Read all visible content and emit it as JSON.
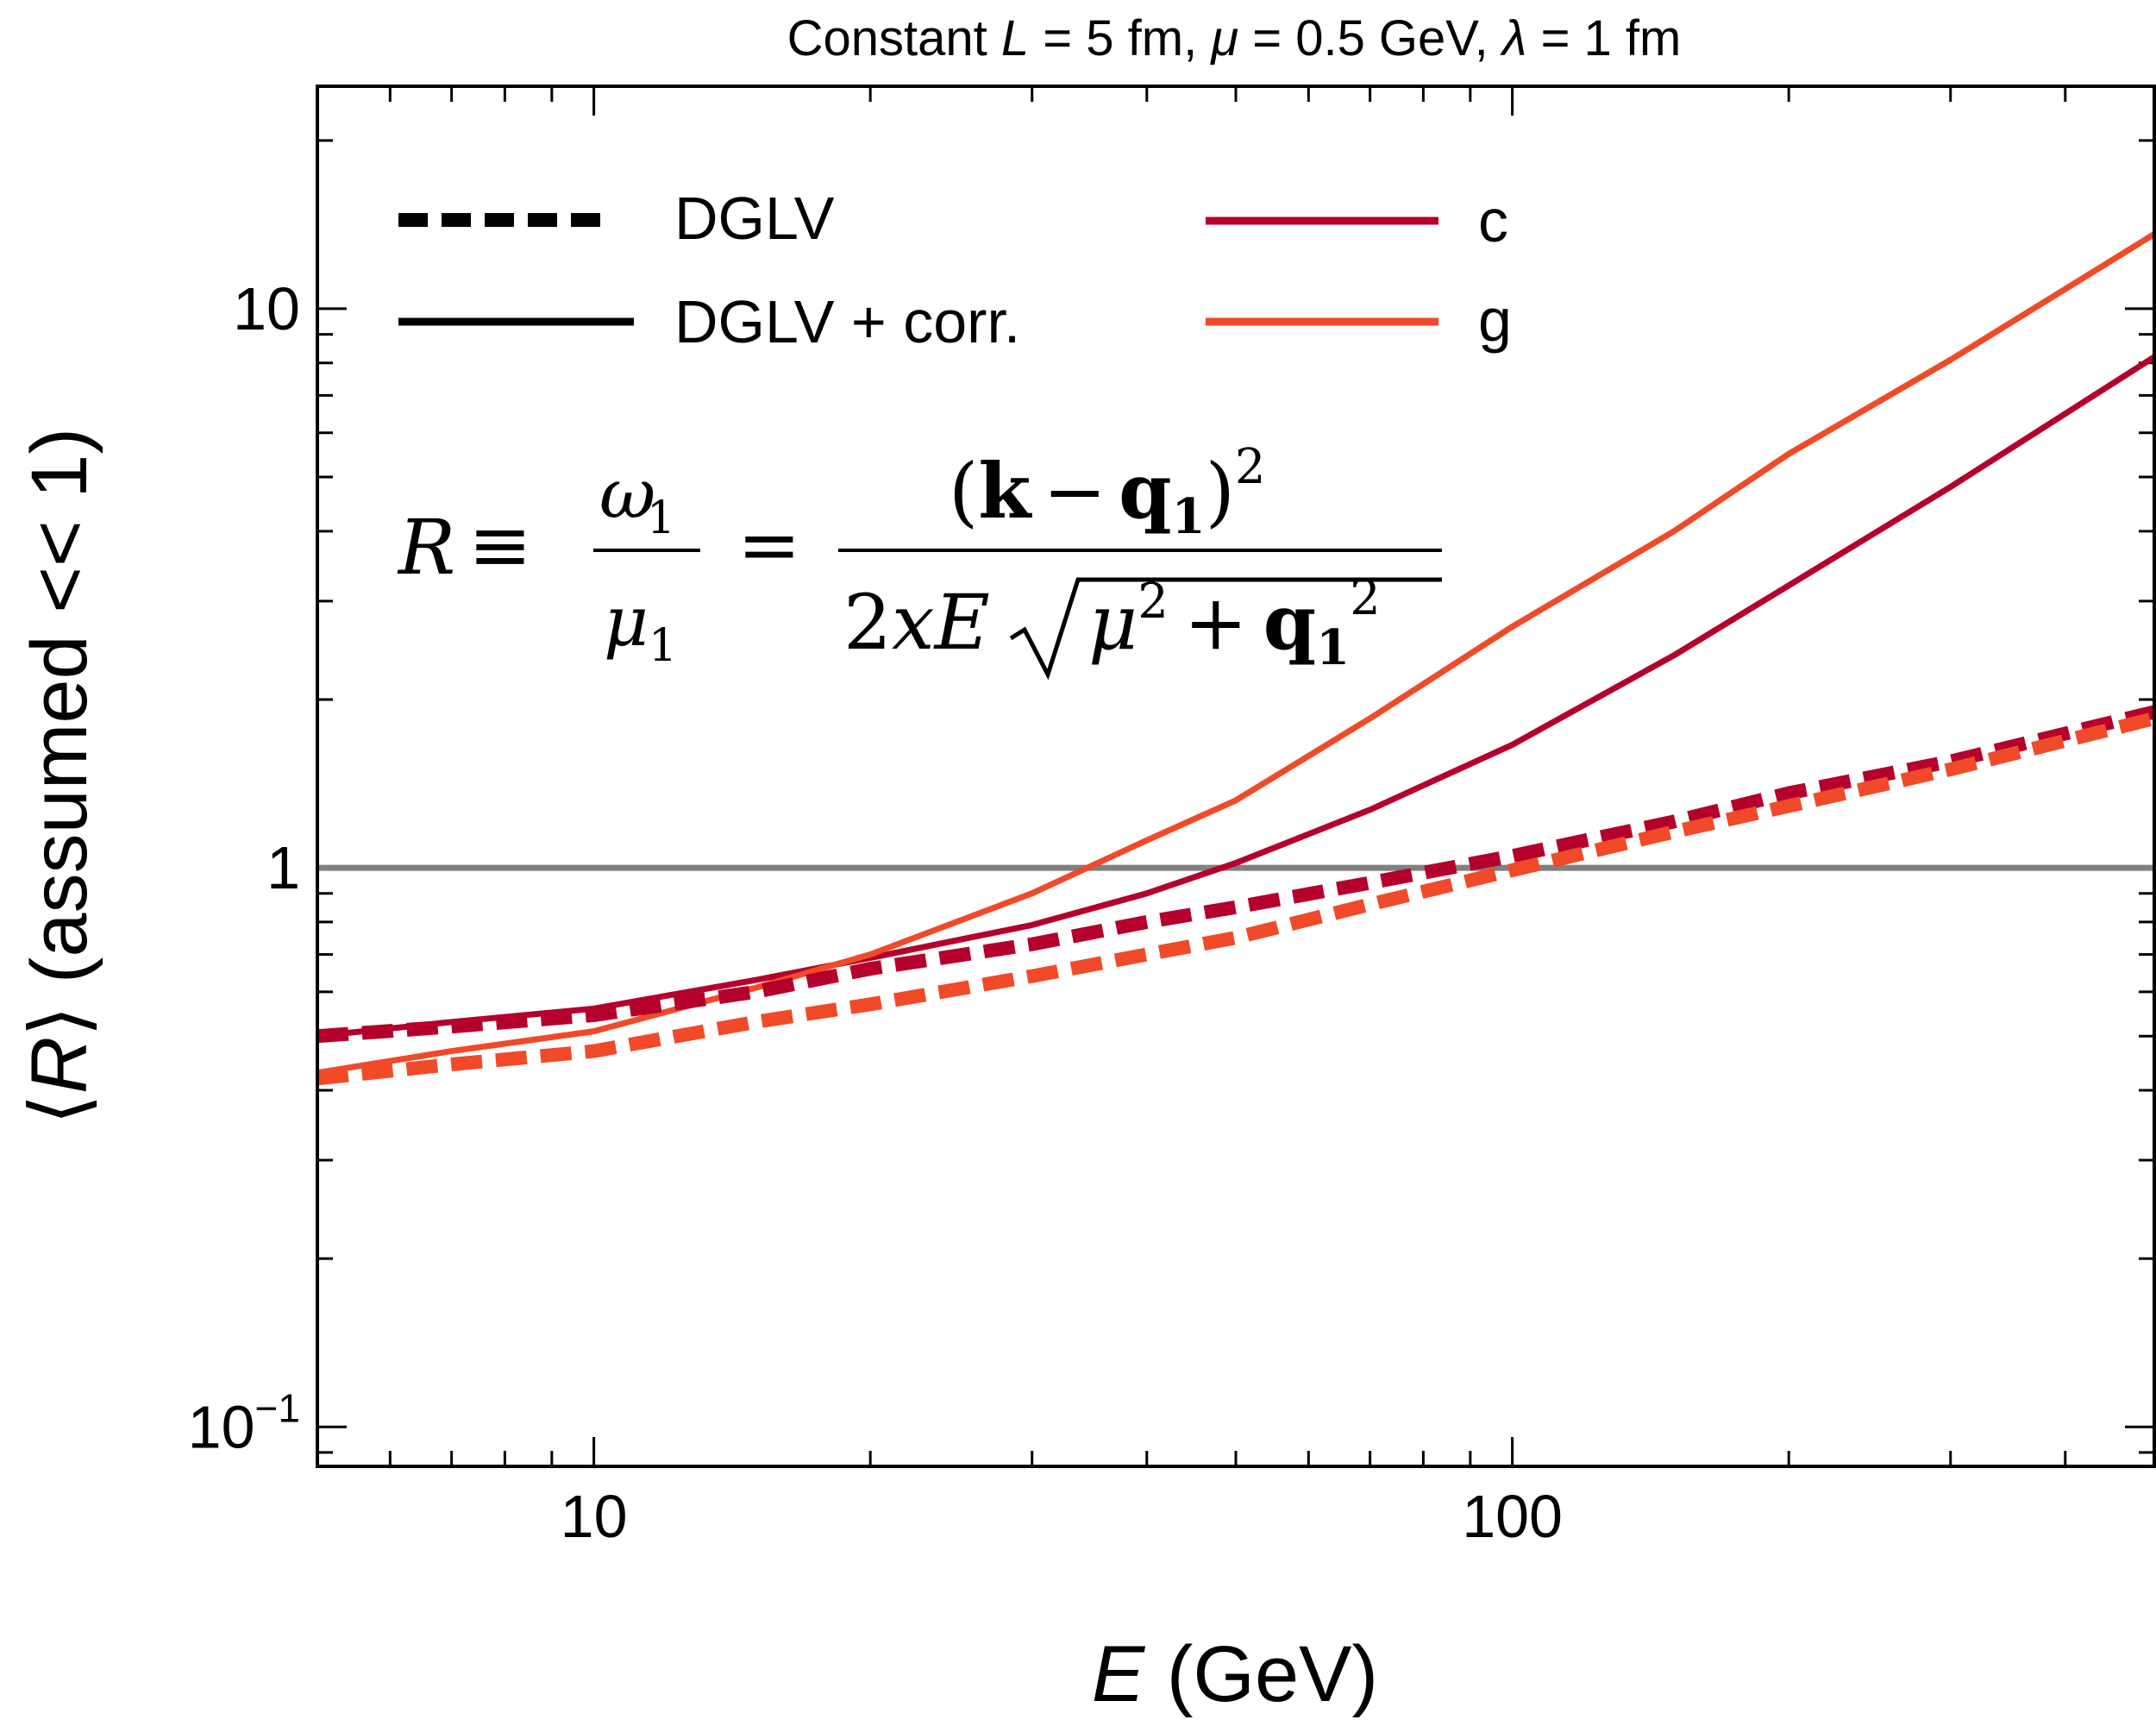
{
  "chart_data": {
    "type": "line",
    "title": "Constant L = 5 fm, μ = 0.5 GeV, λ = 1 fm",
    "title_parts": {
      "p1": "Constant ",
      "p2": "L",
      "p3": " = 5 fm, ",
      "p4": "μ",
      "p5": " = 0.5 GeV, ",
      "p6": "λ",
      "p7": " = 1 fm"
    },
    "xlabel": "E (GeV)",
    "xlabel_parts": {
      "var": "E",
      "unit": " (GeV)"
    },
    "ylabel": "⟨R⟩ (assumed << 1)",
    "ylabel_parts": {
      "open": "⟨",
      "var": "R",
      "close": "⟩",
      "rest": " (assumed << 1)"
    },
    "x_scale": "log",
    "y_scale": "log",
    "xlim": [
      5,
      500
    ],
    "ylim": [
      0.085,
      25
    ],
    "x_ticks": [
      {
        "value": 10,
        "label": "10"
      },
      {
        "value": 100,
        "label": "100"
      }
    ],
    "y_ticks": [
      {
        "value": 0.1,
        "base": "10",
        "exp": "−1"
      },
      {
        "value": 1,
        "base": "1",
        "exp": ""
      },
      {
        "value": 10,
        "base": "10",
        "exp": ""
      }
    ],
    "reference_line": {
      "y": 1,
      "color": "#808080"
    },
    "legend": {
      "placement": "top-left",
      "style_entries": [
        {
          "label": "DGLV",
          "style": "dashed"
        },
        {
          "label": "DGLV + corr.",
          "style": "solid"
        }
      ],
      "color_entries": [
        {
          "label": "c",
          "color": "#b5002c"
        },
        {
          "label": "g",
          "color": "#f04a28"
        }
      ]
    },
    "annotation": {
      "lhs": "R",
      "equiv": "≡",
      "omega": "ω",
      "mu": "μ",
      "sub1": "1",
      "eq": "=",
      "open_paren": "(",
      "k": "k",
      "minus": "−",
      "q": "q",
      "close_paren": ")",
      "sq": "2",
      "two": "2",
      "x": "x",
      "E": "E",
      "plus": "+"
    },
    "series": [
      {
        "name": "c DGLV + corr.",
        "color": "#b5002c",
        "style": "solid",
        "x": [
          5,
          7,
          10,
          15,
          20,
          30,
          40,
          50,
          70,
          100,
          150,
          200,
          300,
          500
        ],
        "y": [
          0.5,
          0.53,
          0.56,
          0.63,
          0.69,
          0.79,
          0.9,
          1.02,
          1.27,
          1.66,
          2.4,
          3.2,
          4.8,
          8.2
        ]
      },
      {
        "name": "g DGLV + corr.",
        "color": "#f04a28",
        "style": "solid",
        "x": [
          5,
          7,
          10,
          15,
          20,
          30,
          40,
          50,
          70,
          100,
          150,
          200,
          300,
          500
        ],
        "y": [
          0.43,
          0.47,
          0.51,
          0.61,
          0.7,
          0.9,
          1.12,
          1.32,
          1.85,
          2.7,
          4.0,
          5.5,
          8.1,
          13.6
        ]
      },
      {
        "name": "c DGLV",
        "color": "#b5002c",
        "style": "dashed",
        "x": [
          5,
          7,
          10,
          15,
          20,
          30,
          40,
          50,
          70,
          100,
          150,
          200,
          300,
          500
        ],
        "y": [
          0.5,
          0.52,
          0.545,
          0.6,
          0.66,
          0.73,
          0.8,
          0.85,
          0.94,
          1.05,
          1.21,
          1.36,
          1.55,
          1.9
        ]
      },
      {
        "name": "g DGLV",
        "color": "#f04a28",
        "style": "dashed",
        "x": [
          5,
          7,
          10,
          15,
          20,
          30,
          40,
          50,
          70,
          100,
          150,
          200,
          300,
          500
        ],
        "y": [
          0.42,
          0.445,
          0.47,
          0.53,
          0.57,
          0.64,
          0.7,
          0.75,
          0.86,
          0.99,
          1.16,
          1.29,
          1.5,
          1.85
        ]
      }
    ]
  }
}
